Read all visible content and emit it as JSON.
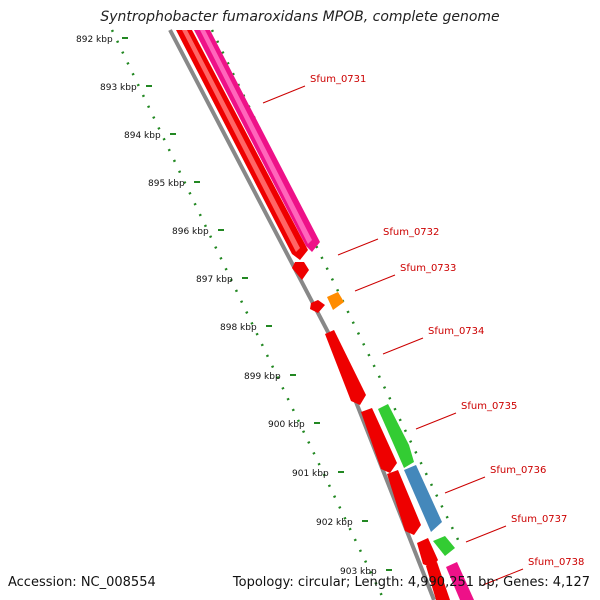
{
  "title": "Syntrophobacter fumaroxidans MPOB, complete genome",
  "footer": {
    "accession": "Accession: NC_008554",
    "summary": "Topology: circular; Length: 4,990,251 bp; Genes: 4,127"
  },
  "ruler": {
    "ticks": [
      "892 kbp",
      "893 kbp",
      "894 kbp",
      "895 kbp",
      "896 kbp",
      "897 kbp",
      "898 kbp",
      "899 kbp",
      "900 kbp",
      "901 kbp",
      "902 kbp",
      "903 kbp"
    ]
  },
  "colors": {
    "red": "#ee0000",
    "magenta": "#ee1188",
    "orange": "#ff8c00",
    "green": "#33cc33",
    "blue": "#4488bb",
    "label": "#cc0000",
    "tick": "#228822",
    "backbone": "#888888"
  },
  "genes": [
    {
      "name": "Sfum_0731",
      "color": "magenta"
    },
    {
      "name": "Sfum_0732",
      "color": "red"
    },
    {
      "name": "Sfum_0733",
      "color": "orange"
    },
    {
      "name": "Sfum_0734",
      "color": "red"
    },
    {
      "name": "Sfum_0735",
      "color": "green"
    },
    {
      "name": "Sfum_0736",
      "color": "blue"
    },
    {
      "name": "Sfum_0737",
      "color": "green"
    },
    {
      "name": "Sfum_0738",
      "color": "magenta"
    }
  ]
}
